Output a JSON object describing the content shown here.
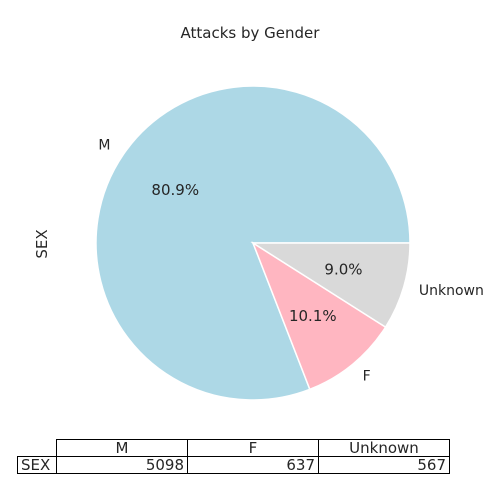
{
  "title": "Attacks by Gender",
  "ylabel": "SEX",
  "chart_data": {
    "type": "pie",
    "title": "Attacks by Gender",
    "ylabel": "SEX",
    "categories": [
      "M",
      "F",
      "Unknown"
    ],
    "values": [
      5098,
      637,
      567
    ],
    "percent_labels": [
      "80.9%",
      "10.1%",
      "9.0%"
    ],
    "colors": [
      "#add8e6",
      "#ffb6c1",
      "#d9d9d9"
    ],
    "start_angle_deg": 0,
    "direction": "counterclockwise"
  },
  "table": {
    "row_label": "SEX",
    "columns": [
      "M",
      "F",
      "Unknown"
    ],
    "values": [
      "5098",
      "637",
      "567"
    ]
  }
}
